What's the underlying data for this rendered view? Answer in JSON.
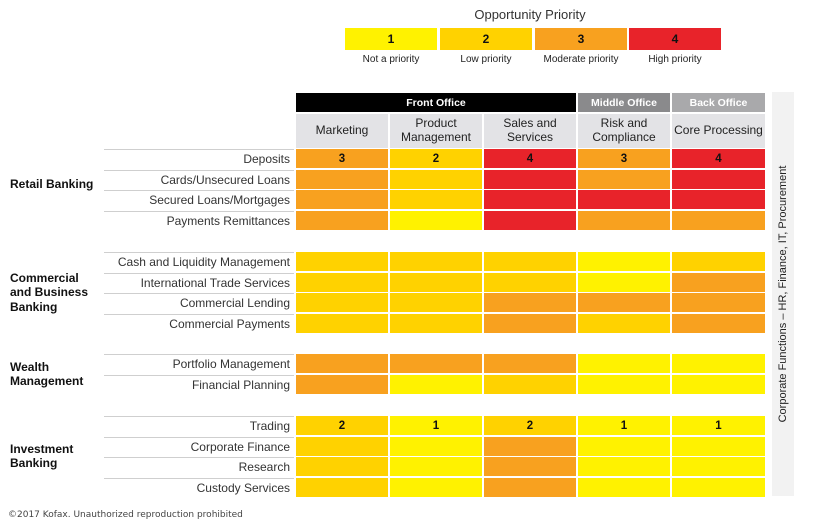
{
  "legend": {
    "title": "Opportunity Priority",
    "items": [
      {
        "value": "1",
        "label": "Not a priority",
        "color": "#fff200"
      },
      {
        "value": "2",
        "label": "Low priority",
        "color": "#ffd200"
      },
      {
        "value": "3",
        "label": "Moderate priority",
        "color": "#f8a11f"
      },
      {
        "value": "4",
        "label": "High priority",
        "color": "#e8232a"
      }
    ]
  },
  "header_groups": [
    {
      "label": "Front Office",
      "color": "#000000"
    },
    {
      "label": "Middle Office",
      "color": "#8a8a8c"
    },
    {
      "label": "Back Office",
      "color": "#a9a9ab"
    }
  ],
  "columns": [
    "Marketing",
    "Product Management",
    "Sales and Services",
    "Risk and Compliance",
    "Core Processing"
  ],
  "side_label": "Corporate Functions – HR, Finance, IT, Procurement",
  "footer": "©2017 Kofax. Unauthorized reproduction prohibited",
  "chart_data": {
    "type": "heatmap",
    "title": "Opportunity Priority",
    "columns": [
      "Marketing",
      "Product Management",
      "Sales and Services",
      "Risk and Compliance",
      "Core Processing"
    ],
    "segments": [
      {
        "name": "Retail Banking",
        "rows": [
          {
            "label": "Deposits",
            "values": [
              3,
              2,
              4,
              3,
              4
            ],
            "show_values": true
          },
          {
            "label": "Cards/Unsecured Loans",
            "values": [
              3,
              2,
              4,
              3,
              4
            ],
            "show_values": false
          },
          {
            "label": "Secured Loans/Mortgages",
            "values": [
              3,
              2,
              4,
              4,
              4
            ],
            "show_values": false
          },
          {
            "label": "Payments Remittances",
            "values": [
              3,
              1,
              4,
              3,
              3
            ],
            "show_values": false
          }
        ]
      },
      {
        "name": "Commercial and Business Banking",
        "rows": [
          {
            "label": "Cash and Liquidity Management",
            "values": [
              2,
              2,
              2,
              1,
              2
            ],
            "show_values": false
          },
          {
            "label": "International Trade Services",
            "values": [
              2,
              2,
              2,
              1,
              3
            ],
            "show_values": false
          },
          {
            "label": "Commercial Lending",
            "values": [
              2,
              2,
              3,
              3,
              3
            ],
            "show_values": false
          },
          {
            "label": "Commercial Payments",
            "values": [
              2,
              2,
              3,
              2,
              3
            ],
            "show_values": false
          }
        ]
      },
      {
        "name": "Wealth Management",
        "rows": [
          {
            "label": "Portfolio Management",
            "values": [
              3,
              3,
              3,
              1,
              1
            ],
            "show_values": false
          },
          {
            "label": "Financial Planning",
            "values": [
              3,
              1,
              2,
              1,
              1
            ],
            "show_values": false
          }
        ]
      },
      {
        "name": "Investment Banking",
        "rows": [
          {
            "label": "Trading",
            "values": [
              2,
              1,
              2,
              1,
              1
            ],
            "show_values": true
          },
          {
            "label": "Corporate Finance",
            "values": [
              2,
              1,
              3,
              1,
              1
            ],
            "show_values": false
          },
          {
            "label": "Research",
            "values": [
              2,
              1,
              3,
              1,
              1
            ],
            "show_values": false
          },
          {
            "label": "Custody Services",
            "values": [
              2,
              1,
              3,
              1,
              1
            ],
            "show_values": false
          }
        ]
      }
    ]
  }
}
